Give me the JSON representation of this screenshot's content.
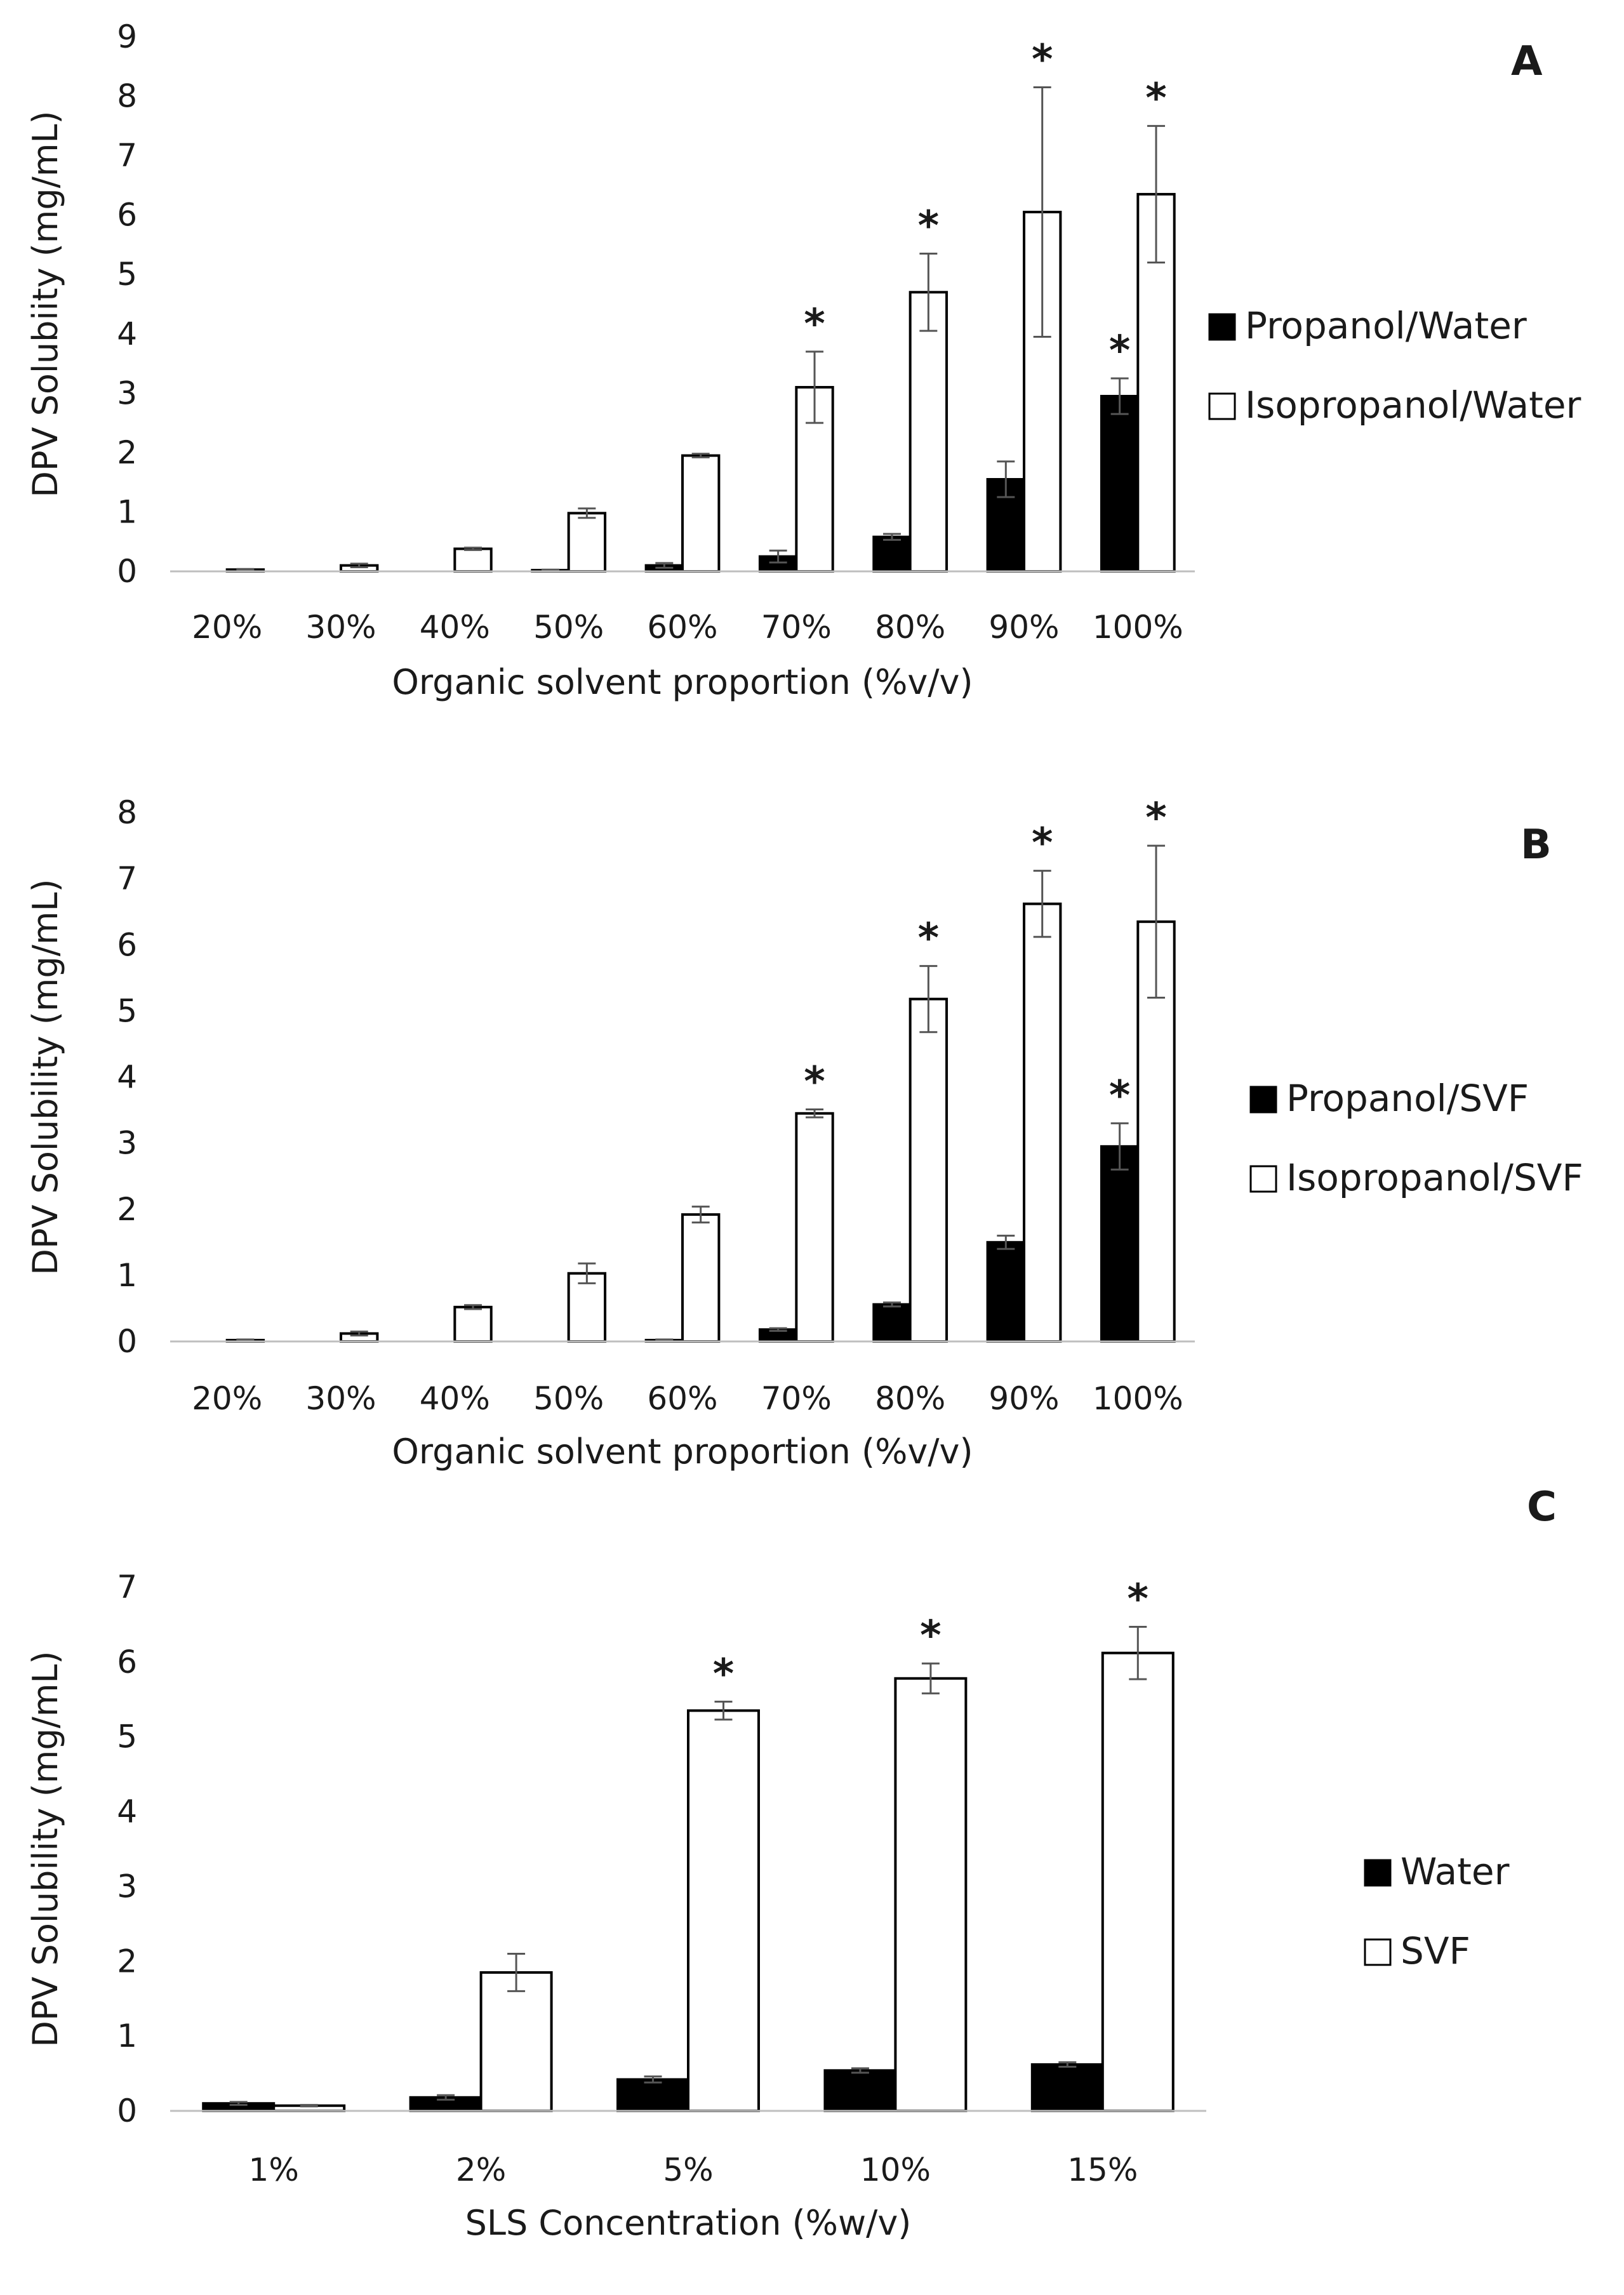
{
  "chart_data": [
    {
      "type": "bar",
      "panel_label": "A",
      "categories": [
        "20%",
        "30%",
        "40%",
        "50%",
        "60%",
        "70%",
        "80%",
        "90%",
        "100%"
      ],
      "series": [
        {
          "name": "Propanol/Water",
          "fill": "#000000",
          "values": [
            0,
            0,
            0,
            0.02,
            0.1,
            0.25,
            0.58,
            1.55,
            2.95
          ],
          "errors": [
            0,
            0,
            0,
            0.01,
            0.04,
            0.1,
            0.05,
            0.3,
            0.3
          ]
        },
        {
          "name": "Isopropanol/Water",
          "fill": "#ffffff",
          "values": [
            0.03,
            0.1,
            0.38,
            0.98,
            1.95,
            3.1,
            4.7,
            6.05,
            6.35
          ],
          "errors": [
            0.01,
            0.03,
            0.02,
            0.08,
            0.03,
            0.6,
            0.65,
            2.1,
            1.15
          ]
        }
      ],
      "significant": {
        "Propanol/Water": [
          "100%"
        ],
        "Isopropanol/Water": [
          "70%",
          "80%",
          "90%",
          "100%"
        ]
      },
      "ylim": [
        0,
        9
      ],
      "yticks": [
        "0",
        "1",
        "2",
        "3",
        "4",
        "5",
        "6",
        "7",
        "8",
        "9"
      ],
      "ylabel": "DPV Solubiity (mg/mL)",
      "xlabel": "Organic solvent proportion  (%v/v)",
      "legend_position": "right",
      "grid": false
    },
    {
      "type": "bar",
      "panel_label": "B",
      "categories": [
        "20%",
        "30%",
        "40%",
        "50%",
        "60%",
        "70%",
        "80%",
        "90%",
        "100%"
      ],
      "series": [
        {
          "name": "Propanol/SVF",
          "fill": "#000000",
          "values": [
            0,
            0,
            0,
            0,
            0.02,
            0.18,
            0.56,
            1.5,
            2.95
          ],
          "errors": [
            0,
            0,
            0,
            0,
            0.01,
            0.02,
            0.03,
            0.1,
            0.35
          ]
        },
        {
          "name": "Isopropanol/SVF",
          "fill": "#ffffff",
          "values": [
            0.02,
            0.12,
            0.52,
            1.03,
            1.92,
            3.45,
            5.18,
            6.62,
            6.35
          ],
          "errors": [
            0.01,
            0.03,
            0.03,
            0.15,
            0.12,
            0.06,
            0.5,
            0.5,
            1.15
          ]
        }
      ],
      "significant": {
        "Propanol/SVF": [
          "100%"
        ],
        "Isopropanol/SVF": [
          "70%",
          "80%",
          "90%",
          "100%"
        ]
      },
      "ylim": [
        0,
        8
      ],
      "yticks": [
        "0",
        "1",
        "2",
        "3",
        "4",
        "5",
        "6",
        "7",
        "8"
      ],
      "ylabel": "DPV Solubility (mg/mL)",
      "xlabel": "Organic solvent proportion  (%v/v)",
      "legend_position": "right",
      "grid": false
    },
    {
      "type": "bar",
      "panel_label": "C",
      "categories": [
        "1%",
        "2%",
        "5%",
        "10%",
        "15%"
      ],
      "series": [
        {
          "name": "Water",
          "fill": "#000000",
          "values": [
            0.1,
            0.18,
            0.42,
            0.54,
            0.62
          ],
          "errors": [
            0.02,
            0.03,
            0.04,
            0.03,
            0.03
          ]
        },
        {
          "name": "SVF",
          "fill": "#ffffff",
          "values": [
            0.07,
            1.85,
            5.35,
            5.78,
            6.12
          ],
          "errors": [
            0.01,
            0.25,
            0.12,
            0.2,
            0.35
          ]
        }
      ],
      "significant": {
        "Water": [],
        "SVF": [
          "5%",
          "10%",
          "15%"
        ]
      },
      "ylim": [
        0,
        7
      ],
      "yticks": [
        "0",
        "1",
        "2",
        "3",
        "4",
        "5",
        "6",
        "7"
      ],
      "ylabel": "DPV Solubility (mg/mL)",
      "xlabel": "SLS Concentration (%w/v)",
      "legend_position": "right",
      "grid": false
    }
  ],
  "significance_marker": "*"
}
